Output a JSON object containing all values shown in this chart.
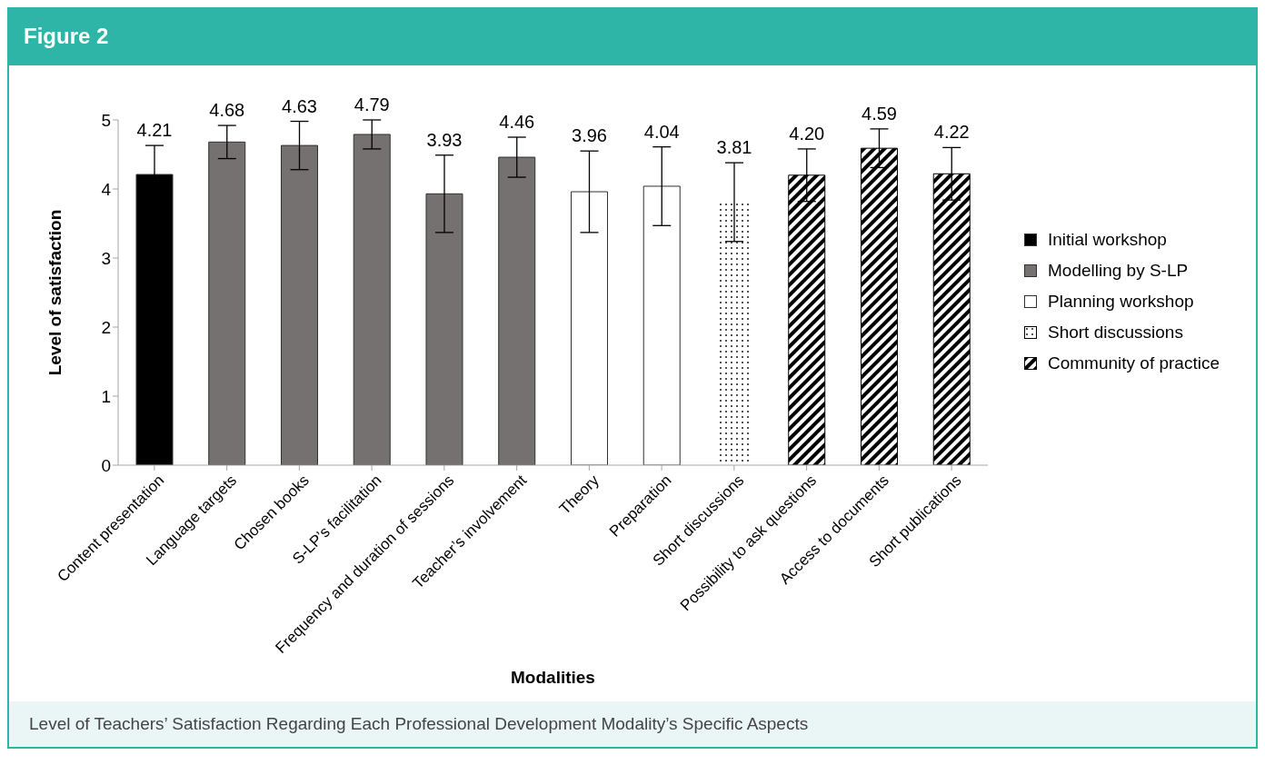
{
  "chart_data": {
    "type": "bar",
    "title": "Figure 2",
    "annotations": [
      "Level of Teachers’ Satisfaction Regarding Each Professional Development Modality’s Specific Aspects"
    ],
    "xlabel": "Modalities",
    "ylabel": "Level of satisfaction",
    "categories": [
      "Content presentation",
      "Language targets",
      "Chosen books",
      "S-LP’s facilitation",
      "Frequency and duration of sessions",
      "Teacher’s involvement",
      "Theory",
      "Preparation",
      "Short discussions",
      "Possibility to ask questions",
      "Access to documents",
      "Short publications"
    ],
    "stacked": true,
    "series": [
      {
        "name": "Initial workshop",
        "color": "#000000",
        "values": [
          4.21,
          null,
          null,
          null,
          null,
          null,
          null,
          null,
          null,
          null,
          null,
          null
        ],
        "errors": [
          0.42,
          null,
          null,
          null,
          null,
          null,
          null,
          null,
          null,
          null,
          null,
          null
        ],
        "value_labels": [
          "4.21",
          null,
          null,
          null,
          null,
          null,
          null,
          null,
          null,
          null,
          null,
          null
        ]
      },
      {
        "name": "Modelling by S-LP",
        "color": "#767171",
        "values": [
          null,
          4.68,
          4.63,
          4.79,
          3.93,
          4.46,
          null,
          null,
          null,
          null,
          null,
          null
        ],
        "errors": [
          null,
          0.24,
          0.35,
          0.21,
          0.56,
          0.29,
          null,
          null,
          null,
          null,
          null,
          null
        ],
        "value_labels": [
          null,
          "4.68",
          "4.63",
          "4.79",
          "3.93",
          "4.46",
          null,
          null,
          null,
          null,
          null,
          null
        ]
      },
      {
        "name": "Planning workshop",
        "color": "#ffffff",
        "values": [
          null,
          null,
          null,
          null,
          null,
          null,
          3.96,
          4.04,
          null,
          null,
          null,
          null
        ],
        "errors": [
          null,
          null,
          null,
          null,
          null,
          null,
          0.59,
          0.57,
          null,
          null,
          null,
          null
        ],
        "value_labels": [
          null,
          null,
          null,
          null,
          null,
          null,
          "3.96",
          "4.04",
          null,
          null,
          null,
          null
        ]
      },
      {
        "name": "Short discussions",
        "color": "#ffffff",
        "values": [
          null,
          null,
          null,
          null,
          null,
          null,
          null,
          null,
          3.81,
          null,
          null,
          null
        ],
        "errors": [
          null,
          null,
          null,
          null,
          null,
          null,
          null,
          null,
          0.57,
          null,
          null,
          null
        ],
        "value_labels": [
          null,
          null,
          null,
          null,
          null,
          null,
          null,
          null,
          "3.81",
          null,
          null,
          null
        ]
      },
      {
        "name": "Community of practice",
        "color": "#000000",
        "values": [
          null,
          null,
          null,
          null,
          null,
          null,
          null,
          null,
          null,
          4.2,
          4.59,
          4.22
        ],
        "errors": [
          null,
          null,
          null,
          null,
          null,
          null,
          null,
          null,
          null,
          0.38,
          0.28,
          0.38
        ],
        "value_labels": [
          null,
          null,
          null,
          null,
          null,
          null,
          null,
          null,
          null,
          "4.20",
          "4.59",
          "4.22"
        ]
      }
    ],
    "ylim": [
      0,
      5
    ],
    "yticks": [
      0,
      1,
      2,
      3,
      4,
      5
    ],
    "grid": false,
    "legend": "right"
  }
}
